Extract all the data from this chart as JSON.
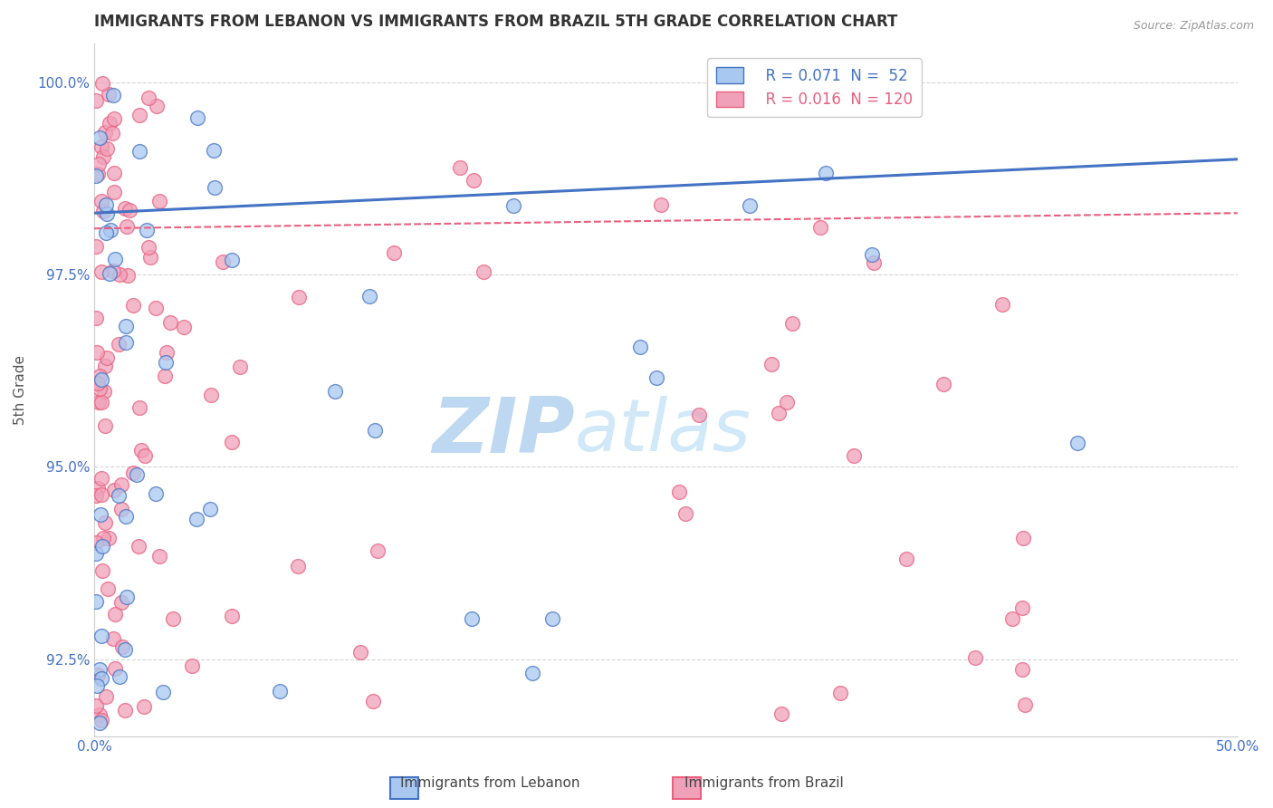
{
  "title": "IMMIGRANTS FROM LEBANON VS IMMIGRANTS FROM BRAZIL 5TH GRADE CORRELATION CHART",
  "source_text": "Source: ZipAtlas.com",
  "ylabel": "5th Grade",
  "xmin": 0.0,
  "xmax": 0.5,
  "ymin": 0.915,
  "ymax": 1.005,
  "yticks": [
    0.925,
    0.95,
    0.975,
    1.0
  ],
  "ytick_labels": [
    "92.5%",
    "95.0%",
    "97.5%",
    "100.0%"
  ],
  "xticks": [
    0.0,
    0.1,
    0.2,
    0.3,
    0.4,
    0.5
  ],
  "xtick_labels_show": [
    "0.0%",
    "",
    "",
    "",
    "",
    "50.0%"
  ],
  "lebanon_line_color": "#4472C4",
  "brazil_line_color": "#E86080",
  "lebanon_dot_facecolor": "#A8C8F0",
  "brazil_dot_facecolor": "#F0A0B8",
  "grid_color": "#CCCCCC",
  "title_color": "#333333",
  "axis_color": "#4472C4",
  "watermark_zip": "ZIP",
  "watermark_atlas": "atlas",
  "watermark_color": "#D0E8F8",
  "watermark_fontsize_zip": 62,
  "watermark_fontsize_atlas": 58,
  "leb_R": 0.071,
  "leb_N": 52,
  "bra_R": 0.016,
  "bra_N": 120
}
